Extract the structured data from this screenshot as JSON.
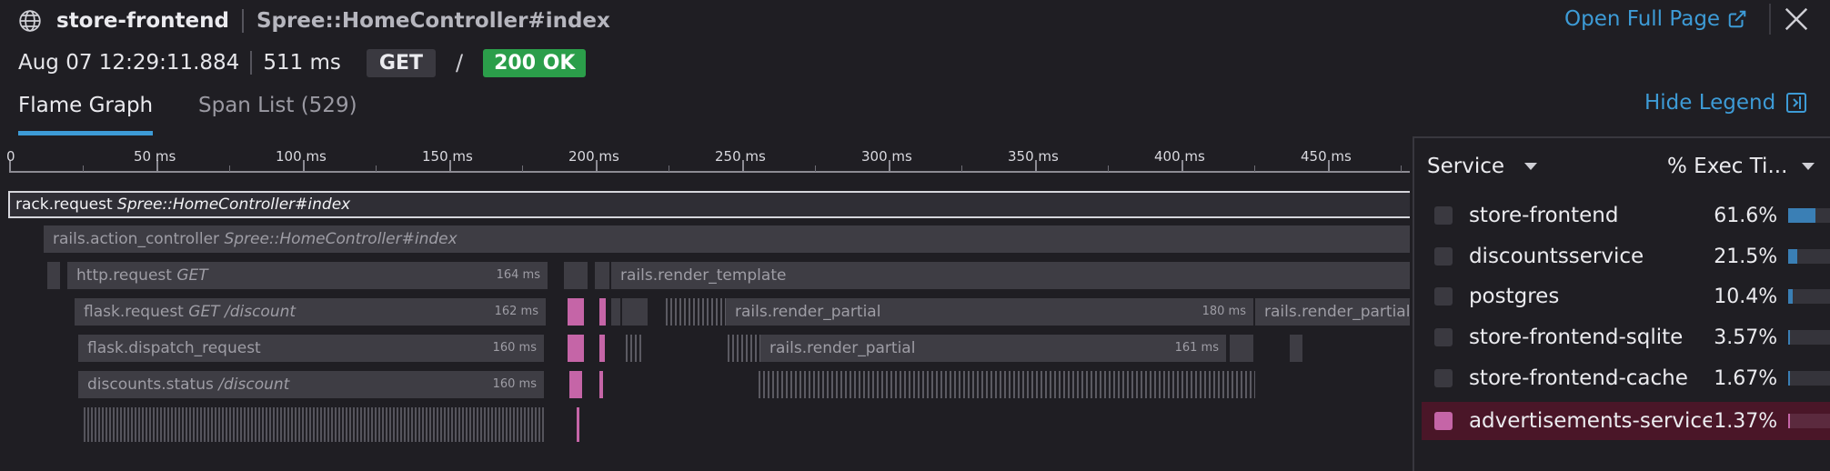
{
  "header": {
    "service": "store-frontend",
    "resource": "Spree::HomeController#index",
    "open_full_page": "Open Full Page",
    "timestamp": "Aug 07 12:29:11.884",
    "duration": "511 ms",
    "method": "GET",
    "slash": "/",
    "status": "200 OK"
  },
  "tabs": {
    "flame_graph": "Flame Graph",
    "span_list": "Span List (529)",
    "hide_legend": "Hide Legend"
  },
  "axis": {
    "ticks": [
      "0",
      "50 ms",
      "100 ms",
      "150 ms",
      "200 ms",
      "250 ms",
      "300 ms",
      "350 ms",
      "400 ms",
      "450 ms"
    ]
  },
  "spans": {
    "root": {
      "name": "rack.request",
      "resource": "Spree::HomeController#index"
    },
    "action_controller": {
      "name": "rails.action_controller",
      "resource": "Spree::HomeController#index"
    },
    "http_request": {
      "name": "http.request",
      "resource": "GET",
      "duration": "164 ms"
    },
    "render_template": {
      "name": "rails.render_template"
    },
    "flask_request": {
      "name": "flask.request",
      "resource": "GET /discount",
      "duration": "162 ms"
    },
    "render_partial_1": {
      "name": "rails.render_partial",
      "duration": "180 ms"
    },
    "render_partial_2": {
      "name": "rails.render_partial"
    },
    "flask_dispatch": {
      "name": "flask.dispatch_request",
      "duration": "160 ms"
    },
    "render_partial_3": {
      "name": "rails.render_partial",
      "duration": "161 ms"
    },
    "discounts_status": {
      "name": "discounts.status",
      "resource": "/discount",
      "duration": "160 ms"
    }
  },
  "legend": {
    "service_header": "Service",
    "exec_header": "% Exec Ti...",
    "rows": [
      {
        "name": "store-frontend",
        "pct": "61.6%",
        "value": 0.616,
        "color": "#3a7fb5"
      },
      {
        "name": "discountsservice",
        "pct": "21.5%",
        "value": 0.215,
        "color": "#3a7fb5"
      },
      {
        "name": "postgres",
        "pct": "10.4%",
        "value": 0.104,
        "color": "#3a7fb5"
      },
      {
        "name": "store-frontend-sqlite",
        "pct": "3.57%",
        "value": 0.0357,
        "color": "#3a7fb5"
      },
      {
        "name": "store-frontend-cache",
        "pct": "1.67%",
        "value": 0.0167,
        "color": "#3a7fb5"
      },
      {
        "name": "advertisements-service",
        "pct": "1.37%",
        "value": 0.0137,
        "color": "#c565a7"
      }
    ]
  },
  "colors": {
    "accent": "#3d9bd6",
    "ok": "#2b9e4a",
    "highlight_service": "#c565a7"
  }
}
